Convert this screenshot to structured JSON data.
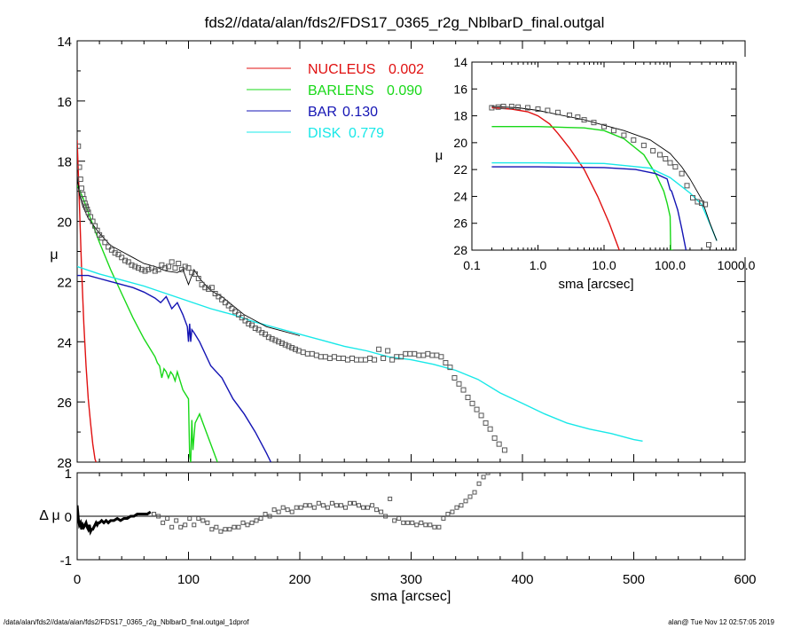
{
  "title": "fds2//data/alan/fds2/FDS17_0365_r2g_NblbarD_final.outgal",
  "footer_left": "/data/alan/fds2//data/alan/fds2/FDS17_0365_r2g_NblbarD_final.outgal_1dprof",
  "footer_right": "alan@  Tue Nov 12 02:57:05 2019",
  "colors": {
    "nucleus": "#e01010",
    "barlens": "#18d818",
    "bar": "#1414b4",
    "disk": "#18e8e8",
    "data": "#555555",
    "axis": "#000000"
  },
  "chart_data": [
    {
      "id": "main",
      "type": "line",
      "xlabel": "sma [arcsec]",
      "ylabel": "μ",
      "xlim": [
        0,
        600
      ],
      "ylim": [
        28,
        14
      ],
      "xticks": [
        0,
        100,
        200,
        300,
        400,
        500,
        600
      ],
      "yticks": [
        14,
        16,
        18,
        20,
        22,
        24,
        26,
        28
      ],
      "legend": [
        {
          "label": "NUCLEUS",
          "value": "0.002",
          "color": "#e01010"
        },
        {
          "label": "BARLENS",
          "value": "0.090",
          "color": "#18d818"
        },
        {
          "label": "BAR",
          "value": "0.130",
          "color": "#1414b4"
        },
        {
          "label": "DISK",
          "value": "0.779",
          "color": "#18e8e8"
        }
      ],
      "series": [
        {
          "name": "NUCLEUS",
          "color": "#e01010",
          "x": [
            0,
            2,
            4,
            6,
            8,
            10,
            12,
            14,
            16,
            17
          ],
          "y": [
            17.3,
            19.4,
            21.6,
            23.4,
            24.8,
            25.9,
            26.7,
            27.4,
            27.9,
            28.0
          ]
        },
        {
          "name": "BARLENS",
          "color": "#18d818",
          "x": [
            0,
            5,
            10,
            20,
            30,
            40,
            50,
            60,
            70,
            72,
            74,
            76,
            78,
            80,
            82,
            84,
            86,
            88,
            90,
            95,
            100,
            101,
            102,
            103,
            104,
            106,
            110,
            115,
            120,
            125,
            126
          ],
          "y": [
            18.8,
            19.2,
            19.7,
            20.7,
            21.6,
            22.4,
            23.2,
            23.9,
            24.5,
            24.7,
            24.8,
            25.2,
            24.9,
            25.0,
            25.2,
            25.0,
            25.1,
            25.3,
            25.0,
            25.6,
            25.9,
            27.8,
            28.0,
            26.6,
            27.6,
            26.7,
            26.4,
            26.9,
            27.4,
            27.9,
            28.0
          ]
        },
        {
          "name": "BAR",
          "color": "#1414b4",
          "x": [
            0,
            10,
            20,
            30,
            40,
            50,
            60,
            70,
            75,
            80,
            85,
            90,
            95,
            99,
            100,
            101,
            102,
            103,
            105,
            110,
            120,
            130,
            140,
            150,
            160,
            170,
            174
          ],
          "y": [
            21.8,
            21.8,
            21.9,
            22.0,
            22.1,
            22.2,
            22.35,
            22.55,
            22.7,
            22.5,
            22.9,
            22.7,
            23.1,
            23.5,
            24.0,
            23.4,
            24.0,
            23.6,
            23.7,
            24.0,
            24.8,
            25.2,
            25.9,
            26.4,
            27.0,
            27.7,
            28.0
          ]
        },
        {
          "name": "DISK",
          "color": "#18e8e8",
          "x": [
            0,
            20,
            40,
            60,
            80,
            100,
            120,
            140,
            160,
            180,
            200,
            220,
            240,
            260,
            280,
            300,
            320,
            340,
            360,
            380,
            400,
            420,
            440,
            460,
            480,
            500,
            508
          ],
          "y": [
            21.5,
            21.75,
            21.95,
            22.15,
            22.4,
            22.65,
            22.9,
            23.1,
            23.35,
            23.55,
            23.75,
            23.95,
            24.15,
            24.3,
            24.5,
            24.6,
            24.75,
            24.95,
            25.25,
            25.7,
            26.05,
            26.4,
            26.7,
            26.9,
            27.05,
            27.25,
            27.3
          ]
        },
        {
          "name": "",
          "color": "#000000",
          "kind": "model",
          "x": [
            0,
            2,
            5,
            10,
            20,
            30,
            40,
            50,
            60,
            70,
            80,
            90,
            95,
            100,
            105,
            110,
            120,
            130,
            140,
            150,
            160,
            170,
            180,
            200
          ],
          "y": [
            18.5,
            19.1,
            19.5,
            19.9,
            20.4,
            20.8,
            21.0,
            21.2,
            21.4,
            21.5,
            21.65,
            21.7,
            21.6,
            22.1,
            21.6,
            21.9,
            22.3,
            22.5,
            22.8,
            23.1,
            23.3,
            23.5,
            23.6,
            23.8
          ]
        },
        {
          "name": "",
          "color": "#555555",
          "kind": "points",
          "x": [
            1,
            2,
            3,
            4,
            5,
            6,
            7,
            8,
            9,
            10,
            12,
            14,
            16,
            18,
            20,
            22,
            25,
            28,
            31,
            34,
            37,
            40,
            43,
            46,
            49,
            52,
            55,
            58,
            61,
            64,
            67,
            70,
            73,
            76,
            79,
            82,
            85,
            88,
            91,
            94,
            97,
            100,
            103,
            106,
            109,
            112,
            115,
            118,
            121,
            124,
            127,
            130,
            133,
            136,
            139,
            142,
            145,
            148,
            151,
            154,
            157,
            160,
            163,
            166,
            169,
            172,
            175,
            178,
            181,
            184,
            187,
            190,
            193,
            196,
            199,
            203,
            207,
            211,
            215,
            219,
            223,
            227,
            231,
            235,
            239,
            243,
            247,
            251,
            255,
            259,
            263,
            267,
            271,
            275,
            279,
            283,
            287,
            291,
            295,
            299,
            303,
            307,
            311,
            315,
            319,
            323,
            327,
            331,
            335,
            339,
            343,
            347,
            351,
            355,
            359,
            363,
            367,
            371,
            375,
            379,
            384
          ],
          "y": [
            17.5,
            18.2,
            18.6,
            18.9,
            19.1,
            19.25,
            19.4,
            19.5,
            19.6,
            19.7,
            19.85,
            20.0,
            20.15,
            20.3,
            20.45,
            20.55,
            20.7,
            20.85,
            20.95,
            21.05,
            21.1,
            21.2,
            21.3,
            21.35,
            21.45,
            21.5,
            21.55,
            21.6,
            21.65,
            21.6,
            21.55,
            21.65,
            21.6,
            21.45,
            21.55,
            21.5,
            21.35,
            21.55,
            21.4,
            21.6,
            21.5,
            21.55,
            21.7,
            21.75,
            21.9,
            22.1,
            22.2,
            22.25,
            22.2,
            22.4,
            22.5,
            22.6,
            22.7,
            22.8,
            22.9,
            23.0,
            23.1,
            23.2,
            23.3,
            23.4,
            23.45,
            23.55,
            23.6,
            23.7,
            23.75,
            23.85,
            23.9,
            23.95,
            24.0,
            24.05,
            24.1,
            24.15,
            24.2,
            24.25,
            24.3,
            24.35,
            24.4,
            24.4,
            24.45,
            24.5,
            24.5,
            24.55,
            24.5,
            24.55,
            24.55,
            24.6,
            24.55,
            24.6,
            24.6,
            24.6,
            24.55,
            24.6,
            24.25,
            24.55,
            24.3,
            24.6,
            24.5,
            24.5,
            24.4,
            24.4,
            24.4,
            24.45,
            24.45,
            24.4,
            24.45,
            24.45,
            24.5,
            24.7,
            24.85,
            25.2,
            25.4,
            25.6,
            25.85,
            26.05,
            26.25,
            26.45,
            26.7,
            26.9,
            27.2,
            27.4,
            27.6
          ]
        }
      ]
    },
    {
      "id": "residual",
      "type": "scatter",
      "xlabel": "sma [arcsec]",
      "ylabel": "Δ μ",
      "xlim": [
        0,
        600
      ],
      "ylim": [
        -1.0,
        1.0
      ],
      "yticks": [
        -1,
        0,
        1
      ],
      "series": [
        {
          "name": "",
          "color": "#000000",
          "kind": "thick",
          "x": [
            0,
            1,
            2,
            3,
            4,
            5,
            6,
            7,
            8,
            9,
            10,
            11,
            12,
            13,
            14,
            15,
            16,
            17,
            18,
            19,
            20,
            22,
            24,
            26,
            28,
            30,
            33,
            36,
            39,
            42,
            45,
            48,
            51,
            54,
            57,
            60,
            63,
            66
          ],
          "y": [
            0.25,
            -0.05,
            -0.2,
            -0.15,
            -0.3,
            -0.2,
            -0.25,
            -0.2,
            -0.15,
            -0.25,
            -0.3,
            -0.2,
            -0.35,
            -0.3,
            -0.3,
            -0.25,
            -0.2,
            -0.15,
            -0.2,
            -0.15,
            -0.15,
            -0.1,
            -0.15,
            -0.1,
            -0.15,
            -0.1,
            -0.1,
            -0.05,
            -0.1,
            -0.05,
            -0.05,
            0.0,
            0.0,
            0.05,
            0.05,
            0.05,
            0.05,
            0.1
          ]
        },
        {
          "name": "",
          "color": "#555555",
          "kind": "points",
          "x": [
            69,
            73,
            77,
            81,
            85,
            89,
            93,
            97,
            101,
            105,
            109,
            113,
            117,
            121,
            125,
            129,
            133,
            137,
            141,
            145,
            149,
            153,
            157,
            161,
            165,
            169,
            173,
            177,
            181,
            185,
            189,
            193,
            197,
            201,
            205,
            209,
            213,
            217,
            221,
            225,
            229,
            233,
            237,
            241,
            245,
            249,
            253,
            257,
            261,
            265,
            269,
            273,
            277,
            281,
            285,
            289,
            293,
            297,
            301,
            305,
            309,
            313,
            317,
            321,
            325,
            329,
            333,
            337,
            341,
            345,
            349,
            353,
            357,
            361,
            365,
            369
          ],
          "y": [
            0.05,
            0.0,
            -0.15,
            -0.05,
            -0.25,
            -0.1,
            -0.25,
            -0.2,
            -0.05,
            -0.2,
            -0.05,
            -0.1,
            -0.15,
            -0.3,
            -0.25,
            -0.35,
            -0.3,
            -0.3,
            -0.25,
            -0.25,
            -0.15,
            -0.2,
            -0.15,
            -0.1,
            -0.05,
            0.05,
            0.0,
            0.15,
            0.1,
            0.2,
            0.15,
            0.1,
            0.2,
            0.2,
            0.25,
            0.25,
            0.2,
            0.3,
            0.25,
            0.2,
            0.3,
            0.25,
            0.25,
            0.2,
            0.3,
            0.3,
            0.25,
            0.2,
            0.2,
            0.25,
            0.15,
            0.1,
            0.0,
            0.4,
            -0.1,
            -0.05,
            -0.15,
            -0.15,
            -0.15,
            -0.2,
            -0.15,
            -0.2,
            -0.2,
            -0.25,
            -0.25,
            -0.05,
            0.05,
            0.1,
            0.2,
            0.25,
            0.35,
            0.45,
            0.55,
            0.75,
            0.9,
            1.0
          ]
        }
      ]
    },
    {
      "id": "inset",
      "type": "line",
      "xlabel": "sma [arcsec]",
      "ylabel": "μ",
      "xscale": "log",
      "xlim": [
        0.1,
        1000
      ],
      "ylim": [
        28,
        14
      ],
      "xticks": [
        0.1,
        1,
        10,
        100,
        1000
      ],
      "xticklabels": [
        "0.1",
        "1.0",
        "10.0",
        "100.0",
        "1000.0"
      ],
      "yticks": [
        14,
        16,
        18,
        20,
        22,
        24,
        26,
        28
      ],
      "series": [
        {
          "name": "NUCLEUS",
          "color": "#e01010",
          "x": [
            0.2,
            0.4,
            0.7,
            1.0,
            1.5,
            2.0,
            3.0,
            5.0,
            8.0,
            12.0,
            17.0
          ],
          "y": [
            17.4,
            17.5,
            17.7,
            18.0,
            18.6,
            19.3,
            20.4,
            22.0,
            24.0,
            26.0,
            28.0
          ]
        },
        {
          "name": "BARLENS",
          "color": "#18d818",
          "x": [
            0.2,
            1.0,
            5.0,
            10.0,
            20.0,
            40.0,
            60.0,
            80.0,
            90.0,
            100.0,
            102.0,
            110.0
          ],
          "y": [
            18.8,
            18.8,
            18.9,
            19.1,
            19.7,
            20.9,
            22.3,
            23.6,
            24.5,
            25.5,
            28.0,
            28.0
          ]
        },
        {
          "name": "BAR",
          "color": "#1414b4",
          "x": [
            0.2,
            1.0,
            10.0,
            30.0,
            60.0,
            90.0,
            100.0,
            105.0,
            110.0,
            130.0,
            150.0,
            174.0
          ],
          "y": [
            21.8,
            21.8,
            21.85,
            22.0,
            22.3,
            22.7,
            23.5,
            23.6,
            23.9,
            25.0,
            26.4,
            28.0
          ]
        },
        {
          "name": "DISK",
          "color": "#18e8e8",
          "x": [
            0.2,
            1.0,
            10.0,
            50.0,
            100.0,
            200.0,
            300.0,
            400.0,
            508.0
          ],
          "y": [
            21.5,
            21.5,
            21.55,
            21.9,
            22.6,
            23.75,
            24.6,
            26.05,
            27.3
          ]
        },
        {
          "name": "",
          "color": "#000000",
          "kind": "model",
          "x": [
            0.2,
            0.5,
            1.0,
            2.0,
            5.0,
            10.0,
            20.0,
            50.0,
            100.0,
            150.0,
            200.0,
            300.0,
            400.0,
            508.0
          ],
          "y": [
            17.3,
            17.4,
            17.6,
            17.9,
            18.3,
            18.7,
            19.1,
            19.8,
            20.8,
            21.8,
            22.7,
            24.2,
            26.0,
            27.3
          ]
        },
        {
          "name": "",
          "color": "#555555",
          "kind": "points",
          "x": [
            0.2,
            0.25,
            0.3,
            0.4,
            0.5,
            0.7,
            1.0,
            1.4,
            2.0,
            3.0,
            4.0,
            5.0,
            7.0,
            10.0,
            14.0,
            20.0,
            28.0,
            40.0,
            55.0,
            70.0,
            85.0,
            100.0,
            120.0,
            150.0,
            180.0,
            220.0,
            260.0,
            300.0,
            340.0,
            384.0
          ],
          "y": [
            17.4,
            17.35,
            17.3,
            17.3,
            17.35,
            17.4,
            17.5,
            17.6,
            17.75,
            17.95,
            18.1,
            18.3,
            18.5,
            18.8,
            19.1,
            19.45,
            19.8,
            20.2,
            20.6,
            20.9,
            21.2,
            21.5,
            21.8,
            22.3,
            23.2,
            24.1,
            24.4,
            24.5,
            24.6,
            27.6
          ]
        }
      ]
    }
  ]
}
